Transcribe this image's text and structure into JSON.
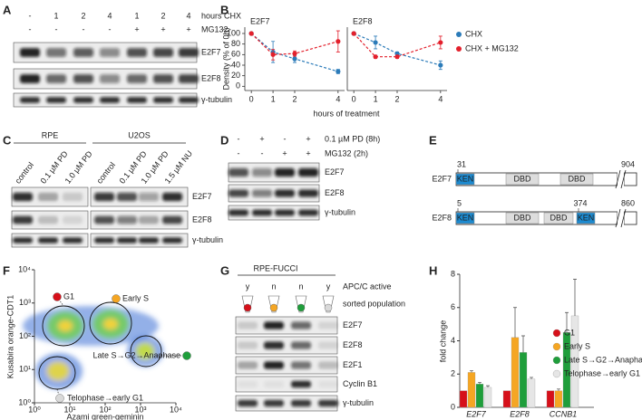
{
  "panel_labels": [
    "A",
    "B",
    "C",
    "D",
    "E",
    "F",
    "G",
    "H"
  ],
  "A": {
    "hours": [
      "-",
      "1",
      "2",
      "4",
      "1",
      "2",
      "4"
    ],
    "hours_label": "hours CHX",
    "mg132": [
      "-",
      "-",
      "-",
      "-",
      "+",
      "+",
      "+"
    ],
    "mg132_label": "MG132",
    "blots": [
      "E2F7",
      "E2F8",
      "γ-tubulin"
    ]
  },
  "C": {
    "groups": [
      {
        "name": "RPE",
        "lanes": [
          "control",
          "0.1 µM PD",
          "1.0 µM PD"
        ]
      },
      {
        "name": "U2OS",
        "lanes": [
          "control",
          "0.1 µM PD",
          "1.0 µM PD",
          "1.5 µM NU"
        ]
      }
    ],
    "blots": [
      "E2F7",
      "E2F8",
      "γ-tubulin"
    ]
  },
  "D": {
    "rows": [
      {
        "label": "0.1 µM PD (8h)",
        "lanes": [
          "-",
          "+",
          "-",
          "+"
        ]
      },
      {
        "label": "MG132 (2h)",
        "lanes": [
          "-",
          "-",
          "+",
          "+"
        ]
      }
    ],
    "blots": [
      "E2F7",
      "E2F8",
      "γ-tubulin"
    ]
  },
  "E": {
    "proteins": [
      {
        "name": "E2F7",
        "start": "31",
        "end": "904",
        "domains": [
          "KEN",
          "DBD",
          "DBD"
        ]
      },
      {
        "name": "E2F8",
        "start": "5",
        "mid": "374",
        "end": "860",
        "domains": [
          "KEN",
          "DBD",
          "DBD",
          "KEN"
        ]
      }
    ]
  },
  "G": {
    "header": "RPE-FUCCI",
    "apc": [
      "y",
      "n",
      "n",
      "y"
    ],
    "apc_label": "APC/C active",
    "sorted_label": "sorted population",
    "blots": [
      "E2F7",
      "E2F8",
      "E2F1",
      "Cyclin B1",
      "γ-tubulin"
    ]
  },
  "chart_data": [
    {
      "type": "line",
      "title": "E2F7",
      "xlabel": "hours of treatment",
      "ylabel": "Density (% of 0h)",
      "x": [
        0,
        1,
        2,
        4
      ],
      "xlim": [
        -0.3,
        4.3
      ],
      "xticks": [
        0,
        1,
        2,
        4
      ],
      "ylim": [
        -8,
        112
      ],
      "yticks": [
        0,
        20,
        40,
        60,
        80,
        100
      ],
      "series": [
        {
          "color": "#2b7bb9",
          "values": [
            100,
            65,
            52,
            28
          ],
          "errors": [
            0,
            20,
            7,
            4
          ]
        },
        {
          "color": "#e3202c",
          "values": [
            100,
            60,
            62,
            85
          ],
          "errors": [
            0,
            10,
            5,
            20
          ]
        }
      ]
    },
    {
      "type": "line",
      "title": "E2F8",
      "x": [
        0,
        1,
        2,
        4
      ],
      "xlim": [
        -0.3,
        4.3
      ],
      "xticks": [
        0,
        1,
        2,
        4
      ],
      "ylim": [
        -8,
        112
      ],
      "series": [
        {
          "name": "CHX",
          "color": "#2b7bb9",
          "values": [
            100,
            83,
            62,
            40
          ],
          "errors": [
            0,
            12,
            3,
            8
          ]
        },
        {
          "name": "CHX + MG132",
          "color": "#e3202c",
          "values": [
            100,
            56,
            56,
            83
          ],
          "errors": [
            0,
            3,
            3,
            12
          ]
        }
      ]
    },
    {
      "type": "scatter",
      "xlabel": "Azami green-geminin",
      "ylabel": "Kusabira orange-CDT1",
      "log_scale": true,
      "xlim": [
        1,
        10000
      ],
      "ylim": [
        1,
        10000
      ],
      "xticks": [
        {
          "value": 1,
          "label": "10⁰"
        },
        {
          "value": 10,
          "label": "10¹"
        },
        {
          "value": 100,
          "label": "10²"
        },
        {
          "value": 1000,
          "label": "10³"
        },
        {
          "value": 10000,
          "label": "10⁴"
        }
      ],
      "yticks": [
        {
          "value": 1,
          "label": "10⁰"
        },
        {
          "value": 10,
          "label": "10¹"
        },
        {
          "value": 100,
          "label": "10²"
        },
        {
          "value": 1000,
          "label": "10³"
        },
        {
          "value": 10000,
          "label": "10⁴"
        }
      ],
      "annotations": [
        {
          "text": "G1",
          "color": "#d6101a"
        },
        {
          "text": "Early S",
          "color": "#f5a623"
        },
        {
          "text": "Late S→G2→Anaphase",
          "color": "#1f9e3b"
        },
        {
          "text": "Telophase→early G1",
          "color": "#d9d9d9"
        }
      ]
    },
    {
      "type": "bar",
      "ylabel": "fold change",
      "categories": [
        "E2F7",
        "E2F8",
        "CCNB1"
      ],
      "ylim": [
        0,
        8
      ],
      "yticks": [
        0,
        2,
        4,
        6,
        8
      ],
      "series": [
        {
          "name": "G1",
          "color": "#d6101a",
          "values": [
            1,
            1,
            1
          ]
        },
        {
          "name": "Early S",
          "color": "#f5a623",
          "values": [
            2.1,
            4.2,
            1.0
          ],
          "errors": [
            0.1,
            1.8,
            0.1
          ]
        },
        {
          "name": "Late S→G2→Anaphase",
          "color": "#1f9e3b",
          "values": [
            1.4,
            3.3,
            4.5
          ],
          "errors": [
            0.1,
            1.0,
            1.2
          ]
        },
        {
          "name": "Telophase→early G1",
          "color": "#e6e6e6",
          "values": [
            1.2,
            1.7,
            5.5
          ],
          "errors": [
            0.1,
            0.1,
            2.2
          ]
        }
      ]
    }
  ]
}
